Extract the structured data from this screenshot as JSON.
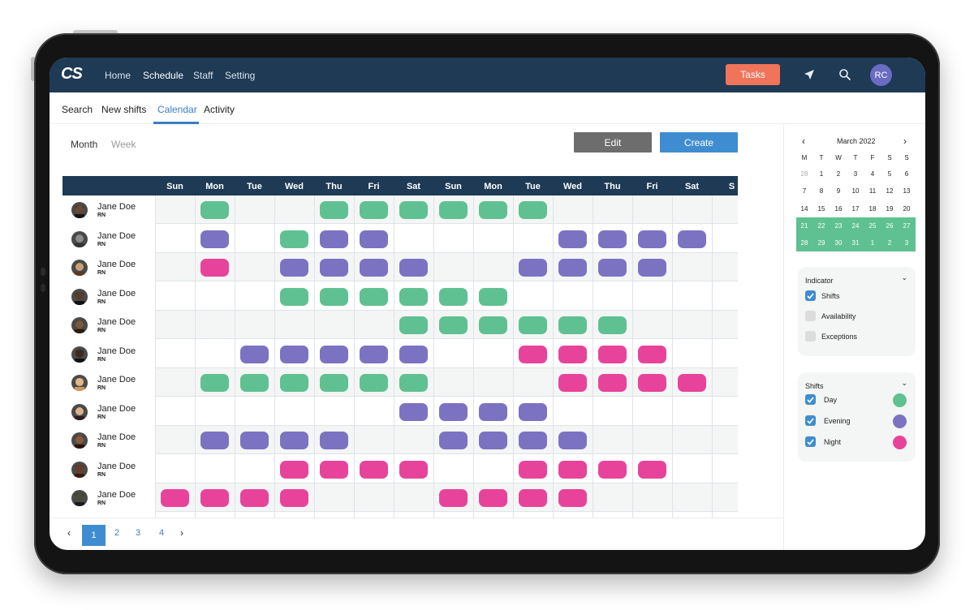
{
  "colors": {
    "nav_bg": "#1e3a55",
    "accent": "#3f8dd0",
    "tasks": "#f0745a",
    "day": "#5fc191",
    "evening": "#7b73c2",
    "night": "#e8439b"
  },
  "nav": {
    "logo": "CS",
    "links": [
      "Home",
      "Schedule",
      "Staff",
      "Setting"
    ],
    "active_link": "Schedule",
    "tasks_label": "Tasks",
    "icons": [
      "send-icon",
      "search-icon"
    ],
    "user_initials": "RC"
  },
  "subtabs": {
    "items": [
      "Search",
      "New shifts",
      "Calendar",
      "Activity"
    ],
    "active": "Calendar"
  },
  "view": {
    "month_label": "Month",
    "week_label": "Week",
    "active": "Month"
  },
  "actions": {
    "edit_label": "Edit",
    "create_label": "Create"
  },
  "schedule": {
    "days": [
      "Sun",
      "Mon",
      "Tue",
      "Wed",
      "Thu",
      "Fri",
      "Sat",
      "Sun",
      "Mon",
      "Tue",
      "Wed",
      "Thu",
      "Fri",
      "Sat",
      "S"
    ],
    "shift_codes": {
      "D": "day",
      "E": "evening",
      "N": "night"
    },
    "employees": [
      {
        "name": "Jane Doe",
        "role": "RN",
        "shifts": [
          "",
          "D",
          "",
          "",
          "D",
          "D",
          "D",
          "D",
          "D",
          "D",
          "",
          "",
          "",
          "",
          ""
        ]
      },
      {
        "name": "Jane Doe",
        "role": "RN",
        "shifts": [
          "",
          "E",
          "",
          "D",
          "E",
          "E",
          "",
          "",
          "",
          "",
          "E",
          "E",
          "E",
          "E",
          ""
        ]
      },
      {
        "name": "Jane Doe",
        "role": "RN",
        "shifts": [
          "",
          "N",
          "",
          "E",
          "E",
          "E",
          "E",
          "",
          "",
          "E",
          "E",
          "E",
          "E",
          "",
          ""
        ]
      },
      {
        "name": "Jane Doe",
        "role": "RN",
        "shifts": [
          "",
          "",
          "",
          "D",
          "D",
          "D",
          "D",
          "D",
          "D",
          "",
          "",
          "",
          "",
          "",
          ""
        ]
      },
      {
        "name": "Jane Doe",
        "role": "RN",
        "shifts": [
          "",
          "",
          "",
          "",
          "",
          "",
          "D",
          "D",
          "D",
          "D",
          "D",
          "D",
          "",
          "",
          ""
        ]
      },
      {
        "name": "Jane Doe",
        "role": "RN",
        "shifts": [
          "",
          "",
          "E",
          "E",
          "E",
          "E",
          "E",
          "",
          "",
          "N",
          "N",
          "N",
          "N",
          "",
          ""
        ]
      },
      {
        "name": "Jane Doe",
        "role": "RN",
        "shifts": [
          "",
          "D",
          "D",
          "D",
          "D",
          "D",
          "D",
          "",
          "",
          "",
          "N",
          "N",
          "N",
          "N",
          ""
        ]
      },
      {
        "name": "Jane Doe",
        "role": "RN",
        "shifts": [
          "",
          "",
          "",
          "",
          "",
          "",
          "E",
          "E",
          "E",
          "E",
          "",
          "",
          "",
          "",
          ""
        ]
      },
      {
        "name": "Jane Doe",
        "role": "RN",
        "shifts": [
          "",
          "E",
          "E",
          "E",
          "E",
          "",
          "",
          "E",
          "E",
          "E",
          "E",
          "",
          "",
          "",
          ""
        ]
      },
      {
        "name": "Jane Doe",
        "role": "RN",
        "shifts": [
          "",
          "",
          "",
          "N",
          "N",
          "N",
          "N",
          "",
          "",
          "N",
          "N",
          "N",
          "N",
          "",
          ""
        ]
      },
      {
        "name": "Jane Doe",
        "role": "RN",
        "shifts": [
          "N",
          "N",
          "N",
          "N",
          "",
          "",
          "",
          "N",
          "N",
          "N",
          "N",
          "",
          "",
          "",
          ""
        ]
      }
    ]
  },
  "pagination": {
    "pages": [
      "1",
      "2",
      "3",
      "4"
    ],
    "current": "1"
  },
  "calendar": {
    "title": "March 2022",
    "dow": [
      "M",
      "T",
      "W",
      "T",
      "F",
      "S",
      "S"
    ],
    "weeks": [
      [
        "28",
        "1",
        "2",
        "3",
        "4",
        "5",
        "6"
      ],
      [
        "7",
        "8",
        "9",
        "10",
        "11",
        "12",
        "13"
      ],
      [
        "14",
        "15",
        "16",
        "17",
        "18",
        "19",
        "20"
      ],
      [
        "21",
        "22",
        "23",
        "24",
        "25",
        "26",
        "27"
      ],
      [
        "28",
        "29",
        "30",
        "31",
        "1",
        "2",
        "3"
      ]
    ],
    "highlighted_weeks": [
      3,
      4
    ]
  },
  "indicator": {
    "title": "Indicator",
    "items": [
      {
        "label": "Shifts",
        "checked": true
      },
      {
        "label": "Availability",
        "checked": false
      },
      {
        "label": "Exceptions",
        "checked": false
      }
    ]
  },
  "shifts_legend": {
    "title": "Shifts",
    "items": [
      {
        "label": "Day",
        "checked": true,
        "color": "#5fc191"
      },
      {
        "label": "Evening",
        "checked": true,
        "color": "#7b73c2"
      },
      {
        "label": "Night",
        "checked": true,
        "color": "#e8439b"
      }
    ]
  }
}
